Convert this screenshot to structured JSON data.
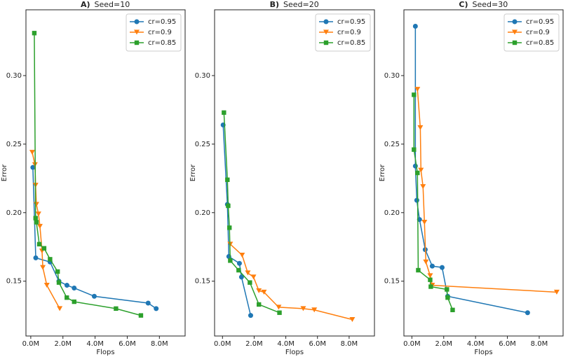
{
  "chart_data": [
    {
      "type": "line",
      "panel_label": "A)",
      "title": "Seed=10",
      "x_label": "Flops",
      "y_label": "Error",
      "xlim": [
        -0.3,
        9.6
      ],
      "ylim": [
        0.11,
        0.348
      ],
      "legend": "upper right",
      "xticks": [
        {
          "value": 0,
          "label": "0.0M"
        },
        {
          "value": 2,
          "label": "2.0M"
        },
        {
          "value": 4,
          "label": "4.0M"
        },
        {
          "value": 6,
          "label": "6.0M"
        },
        {
          "value": 8,
          "label": "8.0M"
        }
      ],
      "yticks": [
        0.15,
        {
          "value": 0.2,
          "label": "0.20"
        },
        0.25,
        {
          "value": 0.3,
          "label": "0.30"
        }
      ],
      "series": [
        {
          "name": "cr=0.95",
          "color": "#1f77b4",
          "marker": "circle",
          "x": [
            0.13,
            0.31,
            1.2,
            1.75,
            2.25,
            2.7,
            3.95,
            7.3,
            7.8
          ],
          "values": [
            0.233,
            0.167,
            0.164,
            0.15,
            0.147,
            0.145,
            0.139,
            0.134,
            0.13
          ]
        },
        {
          "name": "cr=0.9",
          "color": "#ff7f0e",
          "marker": "triangle",
          "x": [
            0.09,
            0.26,
            0.3,
            0.35,
            0.48,
            0.57,
            0.7,
            0.75,
            1.0,
            1.8
          ],
          "values": [
            0.244,
            0.235,
            0.22,
            0.206,
            0.199,
            0.19,
            0.172,
            0.16,
            0.147,
            0.13
          ]
        },
        {
          "name": "cr=0.85",
          "color": "#2ca02c",
          "marker": "square",
          "x": [
            0.22,
            0.3,
            0.35,
            0.53,
            0.83,
            1.2,
            1.67,
            1.75,
            2.24,
            2.7,
            5.3,
            6.85
          ],
          "values": [
            0.331,
            0.196,
            0.193,
            0.177,
            0.174,
            0.166,
            0.157,
            0.149,
            0.138,
            0.135,
            0.13,
            0.125
          ]
        }
      ]
    },
    {
      "type": "line",
      "panel_label": "B)",
      "title": "Seed=20",
      "x_label": "Flops",
      "y_label": "Error",
      "xlim": [
        -0.5,
        9.6
      ],
      "ylim": [
        0.11,
        0.348
      ],
      "legend": "upper right",
      "xticks": [
        {
          "value": 0,
          "label": "0.0M"
        },
        {
          "value": 2,
          "label": "2.0M"
        },
        {
          "value": 4,
          "label": "4.0M"
        },
        {
          "value": 6,
          "label": "6.0M"
        },
        {
          "value": 8,
          "label": "8.0M"
        }
      ],
      "yticks": [
        0.15,
        {
          "value": 0.2,
          "label": "0.20"
        },
        0.25,
        {
          "value": 0.3,
          "label": "0.30"
        }
      ],
      "series": [
        {
          "name": "cr=0.95",
          "color": "#1f77b4",
          "marker": "circle",
          "x": [
            0.04,
            0.31,
            0.4,
            1.07,
            1.2,
            1.78
          ],
          "values": [
            0.264,
            0.206,
            0.168,
            0.163,
            0.153,
            0.125
          ]
        },
        {
          "name": "cr=0.9",
          "color": "#ff7f0e",
          "marker": "triangle",
          "x": [
            0.49,
            1.24,
            1.6,
            1.96,
            2.3,
            2.62,
            3.55,
            5.1,
            5.8,
            8.2
          ],
          "values": [
            0.177,
            0.169,
            0.156,
            0.153,
            0.143,
            0.142,
            0.131,
            0.13,
            0.129,
            0.122
          ]
        },
        {
          "name": "cr=0.85",
          "color": "#2ca02c",
          "marker": "square",
          "x": [
            0.09,
            0.31,
            0.36,
            0.44,
            0.49,
            1.02,
            1.73,
            2.3,
            3.6
          ],
          "values": [
            0.273,
            0.224,
            0.205,
            0.189,
            0.165,
            0.158,
            0.149,
            0.133,
            0.127
          ]
        }
      ]
    },
    {
      "type": "line",
      "panel_label": "C)",
      "title": "Seed=30",
      "x_label": "Flops",
      "y_label": "Error",
      "xlim": [
        -0.5,
        9.5
      ],
      "ylim": [
        0.11,
        0.348
      ],
      "legend": "upper right",
      "xticks": [
        {
          "value": 0,
          "label": "0.0M"
        },
        {
          "value": 2,
          "label": "2.0M"
        },
        {
          "value": 4,
          "label": "4.0M"
        },
        {
          "value": 6,
          "label": "6.0M"
        },
        {
          "value": 8,
          "label": "8.0M"
        }
      ],
      "yticks": [
        0.15,
        {
          "value": 0.2,
          "label": "0.20"
        },
        0.25,
        {
          "value": 0.3,
          "label": "0.30"
        }
      ],
      "series": [
        {
          "name": "cr=0.95",
          "color": "#1f77b4",
          "marker": "circle",
          "x": [
            0.22,
            0.22,
            0.31,
            0.48,
            0.84,
            1.28,
            1.9,
            2.25,
            7.27
          ],
          "values": [
            0.336,
            0.234,
            0.209,
            0.195,
            0.173,
            0.161,
            0.16,
            0.139,
            0.127
          ]
        },
        {
          "name": "cr=0.9",
          "color": "#ff7f0e",
          "marker": "triangle",
          "x": [
            0.35,
            0.53,
            0.57,
            0.7,
            0.79,
            0.88,
            1.15,
            1.28,
            9.1
          ],
          "values": [
            0.29,
            0.262,
            0.231,
            0.219,
            0.193,
            0.164,
            0.154,
            0.147,
            0.142
          ]
        },
        {
          "name": "cr=0.85",
          "color": "#2ca02c",
          "marker": "square",
          "x": [
            0.13,
            0.13,
            0.35,
            0.4,
            1.15,
            1.19,
            2.2,
            2.25,
            2.56
          ],
          "values": [
            0.286,
            0.246,
            0.229,
            0.158,
            0.151,
            0.146,
            0.144,
            0.138,
            0.129
          ]
        }
      ]
    }
  ]
}
